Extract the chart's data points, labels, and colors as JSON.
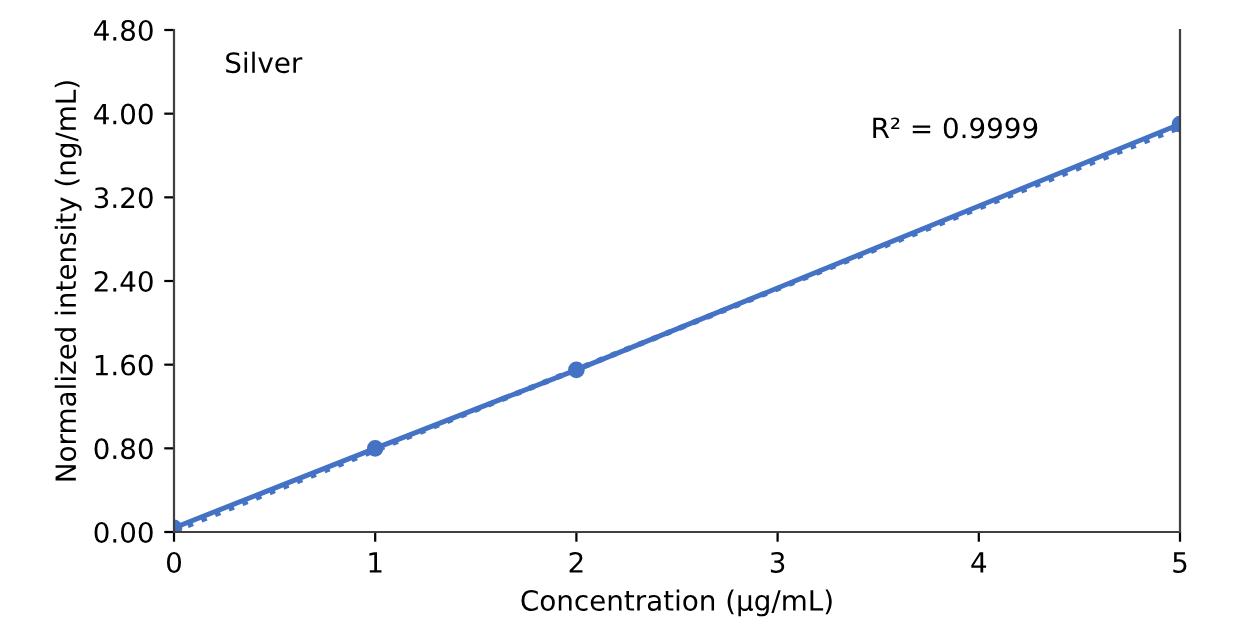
{
  "chart_data": {
    "type": "line",
    "xlabel": "Concentration (µg/mL)",
    "ylabel": "Normalized intensity (ng/mL)",
    "x": [
      0,
      1,
      2,
      5
    ],
    "series": [
      {
        "color": "#4472c4",
        "values": [
          0.04,
          0.8,
          1.55,
          3.9
        ],
        "marker": "circle",
        "line_style": "solid"
      },
      {
        "type": "line",
        "color": "#4472c4",
        "x": [
          0,
          5
        ],
        "values": [
          0.01,
          3.87
        ],
        "marker": "none",
        "line_style": "dotted"
      }
    ],
    "xlim": [
      0,
      5
    ],
    "xticks": [
      0,
      1,
      2,
      3,
      4,
      5
    ],
    "ylim": [
      0,
      4.8
    ],
    "yticks": [
      {
        "value": 0,
        "label": "0.00"
      },
      {
        "value": 0.8,
        "label": "0.80"
      },
      {
        "value": 1.6,
        "label": "1.60"
      },
      {
        "value": 2.4,
        "label": "2.40"
      },
      {
        "value": 3.2,
        "label": "3.20"
      },
      {
        "value": 4.0,
        "label": "4.00"
      },
      {
        "value": 4.8,
        "label": "4.80"
      }
    ],
    "grid": false,
    "legend": false,
    "annotations": [
      "Silver",
      "R² = 0.9999"
    ]
  }
}
